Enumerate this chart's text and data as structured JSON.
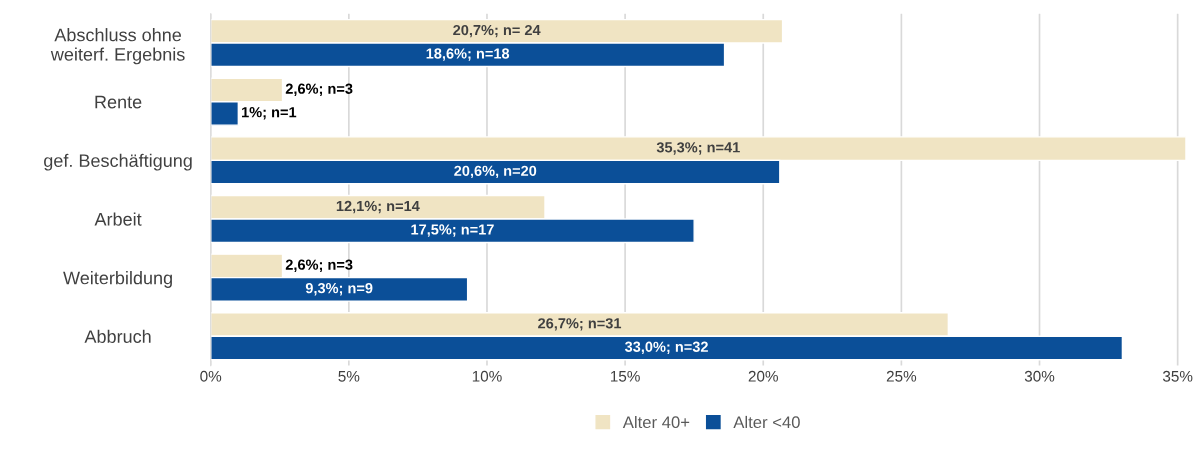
{
  "chart_data": {
    "type": "bar",
    "orientation": "horizontal",
    "categories": [
      "Abschluss ohne\nweiterf. Ergebnis",
      "Rente",
      "gef. Beschäftigung",
      "Arbeit",
      "Weiterbildung",
      "Abbruch"
    ],
    "series": [
      {
        "name": "Alter 40+",
        "color": "#f0e4c3",
        "values": [
          20.7,
          2.6,
          35.3,
          12.1,
          2.6,
          26.7
        ],
        "value_labels": [
          "20,7%; n= 24",
          "2,6%; n=3",
          "35,3%; n=41",
          "12,1%; n=14",
          "2,6%; n=3",
          "26,7%; n=31"
        ]
      },
      {
        "name": "Alter <40",
        "color": "#0b4f98",
        "values": [
          18.6,
          1,
          20.6,
          17.5,
          9.3,
          33.0
        ],
        "value_labels": [
          "18,6%; n=18",
          "1%; n=1",
          "20,6%, n=20",
          "17,5%; n=17",
          "9,3%; n=9",
          "33,0%; n=32"
        ]
      }
    ],
    "xlim": [
      0,
      35.3
    ],
    "xticks": [
      {
        "value": 0,
        "label": "0%"
      },
      {
        "value": 5,
        "label": "5%"
      },
      {
        "value": 10,
        "label": "10%"
      },
      {
        "value": 15,
        "label": "15%"
      },
      {
        "value": 20,
        "label": "20%"
      },
      {
        "value": 25,
        "label": "25%"
      },
      {
        "value": 30,
        "label": "30%"
      },
      {
        "value": 35,
        "label": "35%"
      }
    ],
    "grid": "x",
    "legend": "bottom"
  }
}
